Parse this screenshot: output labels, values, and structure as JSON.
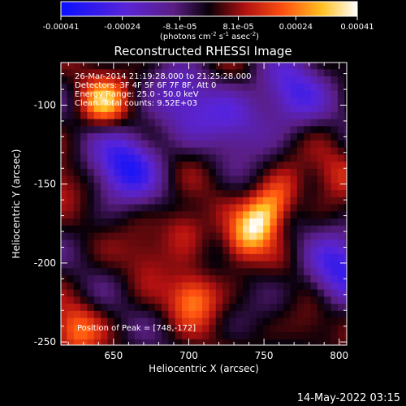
{
  "colorbar": {
    "ticks": [
      "-0.00041",
      "-0.00024",
      "-8.1e-05",
      "8.1e-05",
      "0.00024",
      "0.00041"
    ],
    "tick_values": [
      -0.00041,
      -0.00024,
      -8.1e-05,
      8.1e-05,
      0.00024,
      0.00041
    ],
    "range": [
      -0.00041,
      0.00041
    ],
    "unit_label": "(photons cm",
    "unit_exp1": "-2",
    "unit_mid": " s",
    "unit_exp2": "-1",
    "unit_mid2": " asec",
    "unit_exp3": "-2",
    "unit_end": ")"
  },
  "chart_data": {
    "type": "heatmap",
    "title": "Reconstructed RHESSI Image",
    "xlabel": "Heliocentric X (arcsec)",
    "ylabel": "Heliocentric Y (arcsec)",
    "xlim": [
      615,
      805
    ],
    "ylim": [
      -252,
      -73
    ],
    "x_ticks": [
      650,
      700,
      750,
      800
    ],
    "y_ticks": [
      -100,
      -150,
      -200,
      -250
    ],
    "x_tick_labels": [
      "650",
      "700",
      "750",
      "800"
    ],
    "y_tick_labels": [
      "-100",
      "-150",
      "-200",
      "-250"
    ],
    "colormap": "blue-purple-black-red-yellow-white",
    "annotations": [
      "26-Mar-2014 21:19:28.000 to 21:25:28.000",
      "Detectors: 3F 4F 5F 6F 7F 8F, Att 0",
      "Energy Range: 25.0 - 50.0 keV",
      "Clean.   Total counts: 9.52E+03",
      "Position of Peak = [748,-172]"
    ],
    "peak": {
      "x": 748,
      "y": -172,
      "value": 0.00041
    },
    "sources": [
      {
        "x": 748,
        "y": -172,
        "value": 0.0004
      },
      {
        "x": 643,
        "y": -98,
        "value": 0.0003
      },
      {
        "x": 703,
        "y": -222,
        "value": 0.00024
      },
      {
        "x": 625,
        "y": -242,
        "value": 0.0002
      },
      {
        "x": 697,
        "y": -177,
        "value": 0.00016
      },
      {
        "x": 612,
        "y": -150,
        "value": 0.0001
      },
      {
        "x": 798,
        "y": -143,
        "value": 0.0001
      },
      {
        "x": 672,
        "y": -195,
        "value": 8e-05
      },
      {
        "x": 780,
        "y": -240,
        "value": 8e-05
      },
      {
        "x": 658,
        "y": -138,
        "value": -0.00032
      },
      {
        "x": 768,
        "y": -93,
        "value": -0.00026
      },
      {
        "x": 695,
        "y": -98,
        "value": -0.0002
      },
      {
        "x": 800,
        "y": -205,
        "value": -0.00028
      },
      {
        "x": 730,
        "y": -110,
        "value": -0.00018
      }
    ]
  },
  "footer": {
    "date": "14-May-2022 03:15"
  }
}
